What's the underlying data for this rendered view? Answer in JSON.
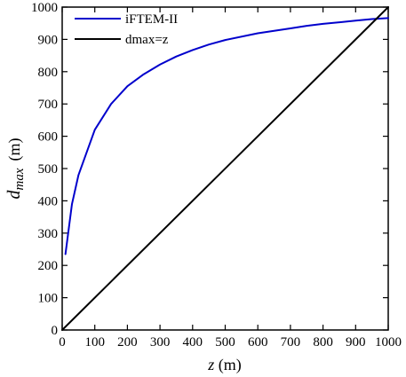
{
  "chart_data": {
    "type": "line",
    "xlabel": {
      "var": "z",
      "unit": " (m)"
    },
    "ylabel": {
      "var_main": "d",
      "var_sub": "max",
      "unit": "(m)"
    },
    "xlim": [
      0,
      1000
    ],
    "ylim": [
      0,
      1000
    ],
    "xticks": [
      0,
      100,
      200,
      300,
      400,
      500,
      600,
      700,
      800,
      900,
      1000
    ],
    "yticks": [
      0,
      100,
      200,
      300,
      400,
      500,
      600,
      700,
      800,
      900,
      1000
    ],
    "grid": false,
    "legend_position": "top-left",
    "series": [
      {
        "name": "iFTEM-II",
        "color": "#0000cc",
        "x": [
          10,
          30,
          50,
          100,
          150,
          200,
          250,
          300,
          350,
          400,
          450,
          500,
          600,
          700,
          750,
          800,
          900,
          950,
          1000
        ],
        "y": [
          235,
          390,
          480,
          620,
          700,
          755,
          792,
          822,
          847,
          867,
          884,
          898,
          919,
          934,
          942,
          948,
          958,
          963,
          966
        ]
      },
      {
        "name": "dmax=z",
        "color": "#000000",
        "x": [
          0,
          1000
        ],
        "y": [
          0,
          1000
        ]
      }
    ]
  }
}
